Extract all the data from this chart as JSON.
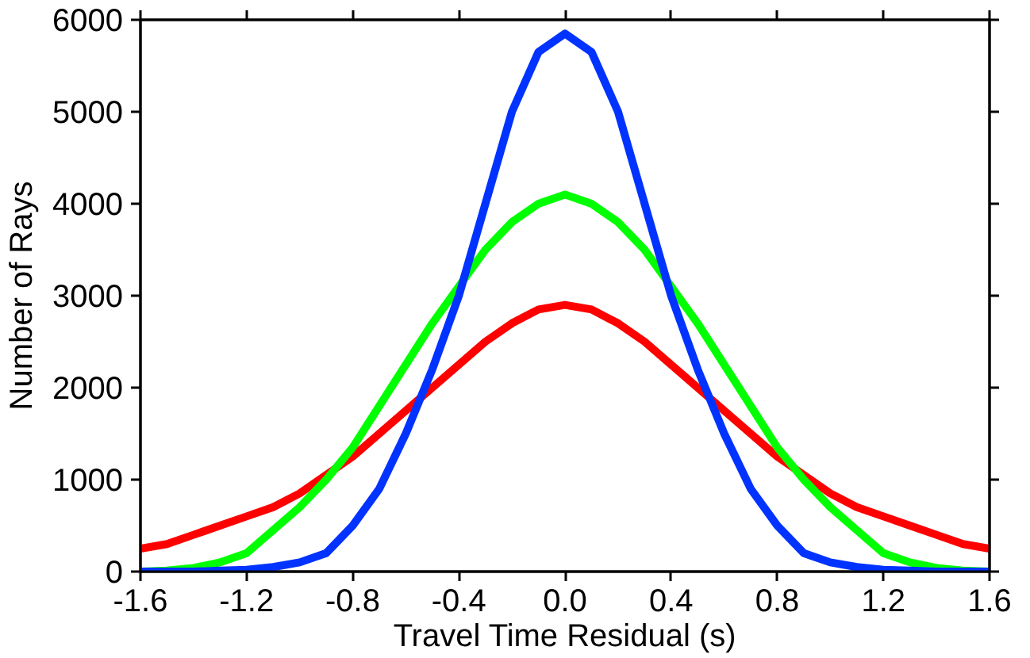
{
  "chart_data": {
    "type": "line",
    "xlabel": "Travel Time Residual (s)",
    "ylabel": "Number of Rays",
    "x": [
      -1.6,
      -1.5,
      -1.4,
      -1.3,
      -1.2,
      -1.1,
      -1.0,
      -0.9,
      -0.8,
      -0.7,
      -0.6,
      -0.5,
      -0.4,
      -0.3,
      -0.2,
      -0.1,
      0.0,
      0.1,
      0.2,
      0.3,
      0.4,
      0.5,
      0.6,
      0.7,
      0.8,
      0.9,
      1.0,
      1.1,
      1.2,
      1.3,
      1.4,
      1.5,
      1.6
    ],
    "series": [
      {
        "color": "#ff0000",
        "values": [
          250,
          300,
          400,
          500,
          600,
          700,
          850,
          1050,
          1250,
          1500,
          1750,
          2000,
          2250,
          2500,
          2700,
          2850,
          2900,
          2850,
          2700,
          2500,
          2250,
          2000,
          1750,
          1500,
          1250,
          1050,
          850,
          700,
          600,
          500,
          400,
          300,
          250
        ]
      },
      {
        "color": "#00ff00",
        "values": [
          0,
          10,
          40,
          100,
          200,
          450,
          700,
          1000,
          1350,
          1800,
          2250,
          2700,
          3100,
          3500,
          3800,
          4000,
          4100,
          4000,
          3800,
          3500,
          3100,
          2700,
          2250,
          1800,
          1350,
          1000,
          700,
          450,
          200,
          100,
          40,
          10,
          0
        ]
      },
      {
        "color": "#0033ff",
        "values": [
          0,
          0,
          0,
          10,
          20,
          50,
          100,
          200,
          500,
          900,
          1500,
          2200,
          3000,
          4000,
          5000,
          5650,
          5850,
          5650,
          5000,
          4000,
          3000,
          2200,
          1500,
          900,
          500,
          200,
          100,
          50,
          20,
          10,
          0,
          0,
          0
        ]
      }
    ],
    "xlim": [
      -1.6,
      1.6
    ],
    "ylim": [
      0,
      6000
    ],
    "xticks": [
      {
        "value": -1.6,
        "label": "-1.6"
      },
      {
        "value": -1.2,
        "label": "-1.2"
      },
      {
        "value": -0.8,
        "label": "-0.8"
      },
      {
        "value": -0.4,
        "label": "-0.4"
      },
      {
        "value": 0,
        "label": "0.0"
      },
      {
        "value": 0.4,
        "label": "0.4"
      },
      {
        "value": 0.8,
        "label": "0.8"
      },
      {
        "value": 1.2,
        "label": "1.2"
      },
      {
        "value": 1.6,
        "label": "1.6"
      }
    ],
    "yticks": [
      0,
      1000,
      2000,
      3000,
      4000,
      5000,
      6000
    ],
    "grid": false,
    "line_style": "solid"
  }
}
